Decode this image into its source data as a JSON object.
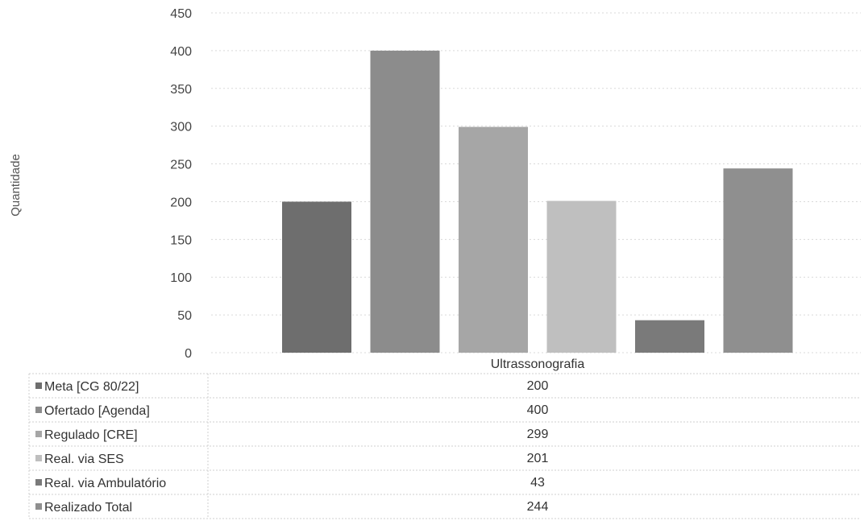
{
  "chart_data": {
    "type": "bar",
    "xlabel": "",
    "ylabel": "Quantidade",
    "categories": [
      "Ultrassonografia"
    ],
    "ylim": [
      0,
      450
    ],
    "yticks": [
      0,
      50,
      100,
      150,
      200,
      250,
      300,
      350,
      400,
      450
    ],
    "grid": true,
    "legend": "data-table-below",
    "series": [
      {
        "name": "Meta [CG 80/22]",
        "values": [
          200
        ],
        "color": "#6e6e6e",
        "label": "200"
      },
      {
        "name": "Ofertado [Agenda]",
        "values": [
          400
        ],
        "color": "#8c8c8c",
        "label": "400"
      },
      {
        "name": "Regulado [CRE]",
        "values": [
          299
        ],
        "color": "#a6a6a6",
        "label": "299"
      },
      {
        "name": "Real. via SES",
        "values": [
          201
        ],
        "color": "#bfbfbf",
        "label": "201"
      },
      {
        "name": "Real. via Ambulatório",
        "values": [
          43
        ],
        "color": "#7a7a7a",
        "label": "43"
      },
      {
        "name": "Realizado Total",
        "values": [
          244
        ],
        "color": "#8f8f8f",
        "label": "244"
      }
    ]
  }
}
